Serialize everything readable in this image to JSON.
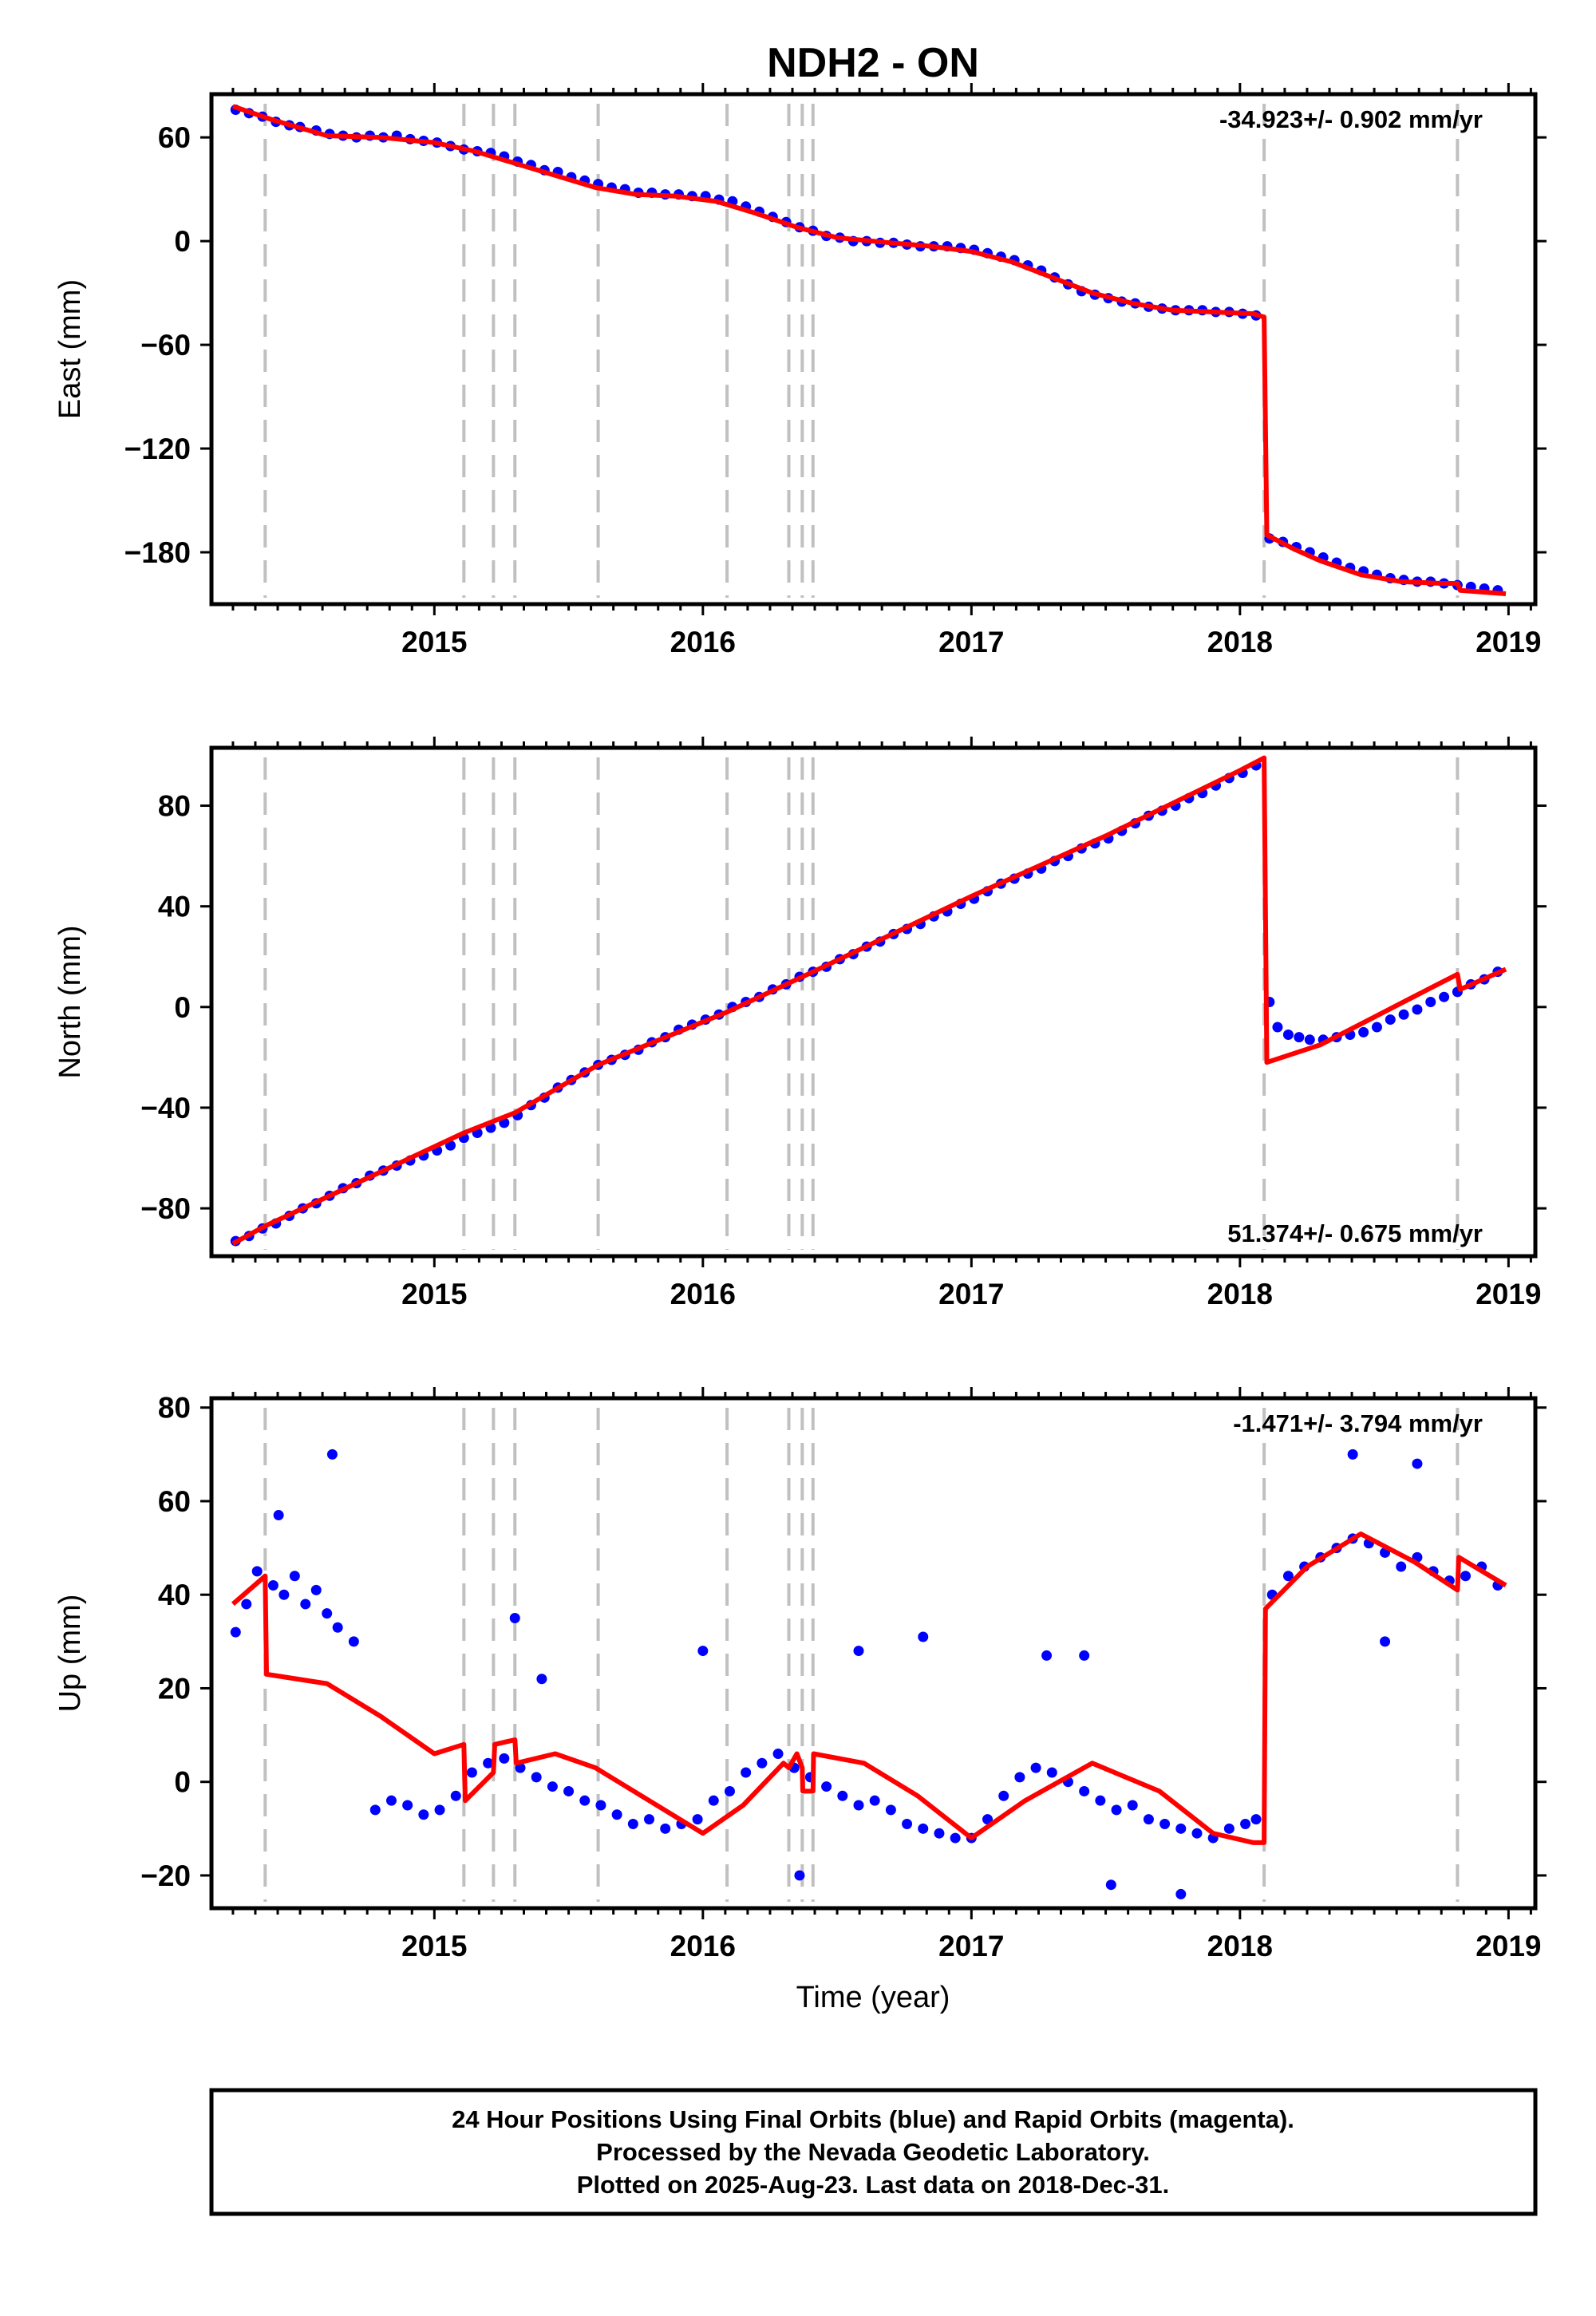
{
  "title": "NDH2 - ON",
  "xlabel": "Time (year)",
  "caption": [
    "24 Hour Positions Using Final Orbits (blue) and Rapid Orbits (magenta).",
    "Processed by the Nevada Geodetic Laboratory.",
    "Plotted on 2025-Aug-23. Last data on 2018-Dec-31."
  ],
  "colors": {
    "final_orbits": "#0000ff",
    "model": "#ff0000",
    "event_lines": "#c0c0c0"
  },
  "chart_data": [
    {
      "type": "scatter",
      "component": "East",
      "ylabel": "East (mm)",
      "rate_label": "-34.923+/- 0.902 mm/yr",
      "rate_position": "top-right",
      "xlim": [
        2014.17,
        2019.1
      ],
      "ylim": [
        -210,
        85
      ],
      "xticks": [
        2015,
        2016,
        2017,
        2018,
        2019
      ],
      "xtick_labels": [
        "2015",
        "2016",
        "2017",
        "2018",
        "2019"
      ],
      "yticks": [
        -180,
        -120,
        -60,
        0,
        60
      ],
      "ytick_labels": [
        "−180",
        "−120",
        "−60",
        "0",
        "60"
      ],
      "event_lines": [
        2014.37,
        2015.11,
        2015.22,
        2015.3,
        2015.61,
        2016.09,
        2016.32,
        2016.37,
        2016.41,
        2018.09,
        2018.81
      ],
      "model_x": [
        2014.25,
        2014.4,
        2014.6,
        2014.8,
        2015.0,
        2015.15,
        2015.3,
        2015.45,
        2015.6,
        2015.75,
        2015.9,
        2016.05,
        2016.2,
        2016.35,
        2016.5,
        2016.7,
        2016.85,
        2017.0,
        2017.15,
        2017.3,
        2017.45,
        2017.6,
        2017.75,
        2017.9,
        2018.05,
        2018.09,
        2018.1,
        2018.2,
        2018.3,
        2018.45,
        2018.6,
        2018.75,
        2018.81,
        2018.82,
        2018.99
      ],
      "model_y": [
        78,
        70,
        61,
        60,
        57,
        52,
        45,
        38,
        31,
        27,
        26,
        23,
        16,
        8,
        2,
        -1,
        -3,
        -6,
        -12,
        -21,
        -30,
        -36,
        -40,
        -41,
        -42,
        -44,
        -170,
        -178,
        -185,
        -193,
        -197,
        -198,
        -198,
        -202,
        -204
      ],
      "points_x": [
        2014.26,
        2014.31,
        2014.36,
        2014.41,
        2014.46,
        2014.5,
        2014.56,
        2014.61,
        2014.66,
        2014.71,
        2014.76,
        2014.81,
        2014.86,
        2014.91,
        2014.96,
        2015.01,
        2015.06,
        2015.11,
        2015.16,
        2015.21,
        2015.26,
        2015.31,
        2015.36,
        2015.41,
        2015.46,
        2015.51,
        2015.56,
        2015.61,
        2015.66,
        2015.71,
        2015.76,
        2015.81,
        2015.86,
        2015.91,
        2015.96,
        2016.01,
        2016.06,
        2016.11,
        2016.16,
        2016.21,
        2016.26,
        2016.31,
        2016.36,
        2016.41,
        2016.46,
        2016.51,
        2016.56,
        2016.61,
        2016.66,
        2016.71,
        2016.76,
        2016.81,
        2016.86,
        2016.91,
        2016.96,
        2017.01,
        2017.06,
        2017.11,
        2017.16,
        2017.21,
        2017.26,
        2017.31,
        2017.36,
        2017.41,
        2017.46,
        2017.51,
        2017.56,
        2017.61,
        2017.66,
        2017.71,
        2017.76,
        2017.81,
        2017.86,
        2017.91,
        2017.96,
        2018.01,
        2018.06,
        2018.11,
        2018.16,
        2018.21,
        2018.26,
        2018.31,
        2018.36,
        2018.41,
        2018.46,
        2018.51,
        2018.56,
        2018.61,
        2018.66,
        2018.71,
        2018.76,
        2018.81,
        2018.86,
        2018.91,
        2018.96
      ],
      "points_y": [
        76,
        74,
        72,
        69,
        67,
        66,
        64,
        62,
        61,
        60,
        61,
        60,
        61,
        59,
        58,
        57,
        55,
        53,
        52,
        51,
        49,
        46,
        44,
        41,
        40,
        37,
        35,
        33,
        31,
        30,
        28,
        28,
        27,
        27,
        26,
        26,
        24,
        23,
        20,
        17,
        14,
        11,
        8,
        6,
        3,
        2,
        0,
        0,
        -1,
        -1,
        -2,
        -3,
        -3,
        -3,
        -4,
        -5,
        -7,
        -9,
        -11,
        -14,
        -17,
        -21,
        -25,
        -29,
        -31,
        -33,
        -35,
        -36,
        -38,
        -39,
        -40,
        -40,
        -40,
        -41,
        -41,
        -42,
        -43,
        -172,
        -174,
        -177,
        -180,
        -183,
        -186,
        -189,
        -191,
        -193,
        -195,
        -196,
        -197,
        -197,
        -198,
        -199,
        -200,
        -201,
        -202
      ]
    },
    {
      "type": "scatter",
      "component": "North",
      "ylabel": "North (mm)",
      "rate_label": "51.374+/- 0.675 mm/yr",
      "rate_position": "bottom-right",
      "xlim": [
        2014.17,
        2019.1
      ],
      "ylim": [
        -99,
        103
      ],
      "xticks": [
        2015,
        2016,
        2017,
        2018,
        2019
      ],
      "xtick_labels": [
        "2015",
        "2016",
        "2017",
        "2018",
        "2019"
      ],
      "yticks": [
        -80,
        -40,
        0,
        40,
        80
      ],
      "ytick_labels": [
        "−80",
        "−40",
        "0",
        "40",
        "80"
      ],
      "event_lines": [
        2014.37,
        2015.11,
        2015.22,
        2015.3,
        2015.61,
        2016.09,
        2016.32,
        2016.37,
        2016.41,
        2018.09,
        2018.81
      ],
      "model_x": [
        2014.25,
        2014.37,
        2015.11,
        2015.3,
        2015.61,
        2016.09,
        2016.41,
        2017.0,
        2017.5,
        2018.0,
        2018.09,
        2018.1,
        2018.3,
        2018.5,
        2018.7,
        2018.81,
        2018.82,
        2018.99
      ],
      "model_y": [
        -94,
        -87,
        -50,
        -42,
        -23,
        -2,
        14,
        44,
        68,
        94,
        99,
        -22,
        -15,
        -4,
        7,
        13,
        7,
        15
      ],
      "points_x": [
        2014.26,
        2014.31,
        2014.36,
        2014.41,
        2014.46,
        2014.51,
        2014.56,
        2014.61,
        2014.66,
        2014.71,
        2014.76,
        2014.81,
        2014.86,
        2014.91,
        2014.96,
        2015.01,
        2015.06,
        2015.11,
        2015.16,
        2015.21,
        2015.26,
        2015.31,
        2015.36,
        2015.41,
        2015.46,
        2015.51,
        2015.56,
        2015.61,
        2015.66,
        2015.71,
        2015.76,
        2015.81,
        2015.86,
        2015.91,
        2015.96,
        2016.01,
        2016.06,
        2016.11,
        2016.16,
        2016.21,
        2016.26,
        2016.31,
        2016.36,
        2016.41,
        2016.46,
        2016.51,
        2016.56,
        2016.61,
        2016.66,
        2016.71,
        2016.76,
        2016.81,
        2016.86,
        2016.91,
        2016.96,
        2017.01,
        2017.06,
        2017.11,
        2017.16,
        2017.21,
        2017.26,
        2017.31,
        2017.36,
        2017.41,
        2017.46,
        2017.51,
        2017.56,
        2017.61,
        2017.66,
        2017.71,
        2017.76,
        2017.81,
        2017.86,
        2017.91,
        2017.96,
        2018.01,
        2018.06,
        2018.11,
        2018.14,
        2018.18,
        2018.22,
        2018.26,
        2018.31,
        2018.36,
        2018.41,
        2018.46,
        2018.51,
        2018.56,
        2018.61,
        2018.66,
        2018.71,
        2018.76,
        2018.81,
        2018.86,
        2018.91,
        2018.96
      ],
      "points_y": [
        -93,
        -91,
        -88,
        -86,
        -83,
        -80,
        -78,
        -75,
        -72,
        -70,
        -67,
        -65,
        -63,
        -61,
        -59,
        -57,
        -55,
        -52,
        -50,
        -48,
        -46,
        -43,
        -39,
        -36,
        -32,
        -29,
        -26,
        -23,
        -21,
        -19,
        -17,
        -14,
        -12,
        -9,
        -7,
        -5,
        -3,
        0,
        2,
        4,
        7,
        9,
        12,
        14,
        16,
        19,
        21,
        24,
        26,
        29,
        31,
        33,
        36,
        38,
        41,
        43,
        46,
        49,
        51,
        53,
        55,
        58,
        60,
        63,
        65,
        67,
        70,
        73,
        76,
        78,
        80,
        83,
        85,
        88,
        91,
        93,
        96,
        2,
        -8,
        -11,
        -12,
        -13,
        -13,
        -12,
        -11,
        -10,
        -8,
        -5,
        -3,
        -1,
        2,
        4,
        6,
        9,
        11,
        14
      ]
    },
    {
      "type": "scatter",
      "component": "Up",
      "ylabel": "Up (mm)",
      "rate_label": "-1.471+/- 3.794 mm/yr",
      "rate_position": "top-right",
      "xlim": [
        2014.17,
        2019.1
      ],
      "ylim": [
        -27,
        82
      ],
      "xticks": [
        2015,
        2016,
        2017,
        2018,
        2019
      ],
      "xtick_labels": [
        "2015",
        "2016",
        "2017",
        "2018",
        "2019"
      ],
      "yticks": [
        -20,
        0,
        20,
        40,
        60,
        80
      ],
      "ytick_labels": [
        "−20",
        "0",
        "20",
        "40",
        "60",
        "80"
      ],
      "event_lines": [
        2014.37,
        2015.11,
        2015.22,
        2015.3,
        2015.61,
        2016.09,
        2016.32,
        2016.37,
        2016.41,
        2018.09,
        2018.81
      ],
      "model_x": [
        2014.25,
        2014.37,
        2014.375,
        2014.6,
        2014.8,
        2015.0,
        2015.11,
        2015.115,
        2015.22,
        2015.225,
        2015.3,
        2015.305,
        2015.45,
        2015.6,
        2015.8,
        2016.0,
        2016.15,
        2016.3,
        2016.32,
        2016.35,
        2016.37,
        2016.372,
        2016.41,
        2016.412,
        2016.6,
        2016.8,
        2017.0,
        2017.2,
        2017.45,
        2017.7,
        2017.9,
        2018.05,
        2018.09,
        2018.095,
        2018.25,
        2018.45,
        2018.65,
        2018.81,
        2018.815,
        2018.99
      ],
      "model_y": [
        38,
        44,
        23,
        21,
        14,
        6,
        8,
        -4,
        2,
        8,
        9,
        4,
        6,
        3,
        -4,
        -11,
        -5,
        4,
        3,
        6,
        3,
        -2,
        -2,
        6,
        4,
        -3,
        -12,
        -4,
        4,
        -2,
        -11,
        -13,
        -13,
        37,
        46,
        53,
        47,
        41,
        48,
        42
      ],
      "points_x": [
        2014.26,
        2014.3,
        2014.34,
        2014.4,
        2014.44,
        2014.48,
        2014.52,
        2014.56,
        2014.6,
        2014.64,
        2014.7,
        2014.78,
        2014.84,
        2014.9,
        2014.96,
        2015.02,
        2015.08,
        2015.14,
        2015.2,
        2015.26,
        2015.32,
        2015.38,
        2015.44,
        2015.5,
        2015.56,
        2015.62,
        2015.68,
        2015.74,
        2015.8,
        2015.86,
        2015.92,
        2015.98,
        2016.04,
        2016.1,
        2016.16,
        2016.22,
        2016.28,
        2016.34,
        2016.4,
        2016.46,
        2016.52,
        2016.58,
        2016.64,
        2016.7,
        2016.76,
        2016.82,
        2016.88,
        2016.94,
        2017.0,
        2017.06,
        2017.12,
        2017.18,
        2017.24,
        2017.3,
        2017.36,
        2017.42,
        2017.48,
        2017.54,
        2017.6,
        2017.66,
        2017.72,
        2017.78,
        2017.84,
        2017.9,
        2017.96,
        2018.02,
        2018.06,
        2018.12,
        2018.18,
        2018.24,
        2018.3,
        2018.36,
        2018.42,
        2018.48,
        2018.54,
        2018.6,
        2018.66,
        2018.72,
        2018.78,
        2018.84,
        2018.9,
        2018.96,
        2014.42,
        2014.62,
        2015.4,
        2016.0,
        2016.58,
        2016.82,
        2017.28,
        2017.42,
        2017.52,
        2017.78,
        2018.42,
        2018.66,
        2018.54,
        2015.3,
        2016.36
      ],
      "points_y": [
        32,
        38,
        45,
        42,
        40,
        44,
        38,
        41,
        36,
        33,
        30,
        -6,
        -4,
        -5,
        -7,
        -6,
        -3,
        2,
        4,
        5,
        3,
        1,
        -1,
        -2,
        -4,
        -5,
        -7,
        -9,
        -8,
        -10,
        -9,
        -8,
        -4,
        -2,
        2,
        4,
        6,
        3,
        1,
        -1,
        -3,
        -5,
        -4,
        -6,
        -9,
        -10,
        -11,
        -12,
        -12,
        -8,
        -3,
        1,
        3,
        2,
        0,
        -2,
        -4,
        -6,
        -5,
        -8,
        -9,
        -10,
        -11,
        -12,
        -10,
        -9,
        -8,
        40,
        44,
        46,
        48,
        50,
        52,
        51,
        49,
        46,
        48,
        45,
        43,
        44,
        46,
        42,
        57,
        70,
        22,
        28,
        28,
        31,
        27,
        27,
        -22,
        -24,
        70,
        68,
        30,
        35,
        -20
      ]
    }
  ]
}
